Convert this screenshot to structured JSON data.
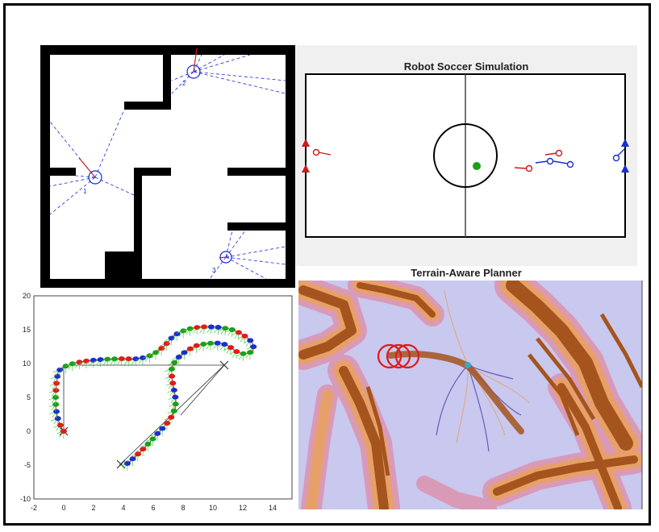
{
  "maze_panel": {
    "robot_labels": [
      "1",
      "2",
      "3"
    ]
  },
  "soccer_panel": {
    "title": "Robot Soccer Simulation"
  },
  "nav_panel": {
    "y_ticks": [
      "20",
      "15",
      "10",
      "5",
      "0",
      "-5",
      "-10"
    ],
    "x_ticks": [
      "-2",
      "0",
      "2",
      "4",
      "6",
      "8",
      "10",
      "12",
      "14"
    ]
  },
  "terrain_panel": {
    "title": "Terrain-Aware Planner"
  },
  "colors": {
    "wall": "#000000",
    "lidar": "#1a2fd0",
    "heading": "#cc2222",
    "terrain_bg": "#c9c8ef",
    "terrain_pink": "#d99ab8",
    "terrain_orange": "#e8a06a",
    "terrain_brown": "#a4541c"
  }
}
